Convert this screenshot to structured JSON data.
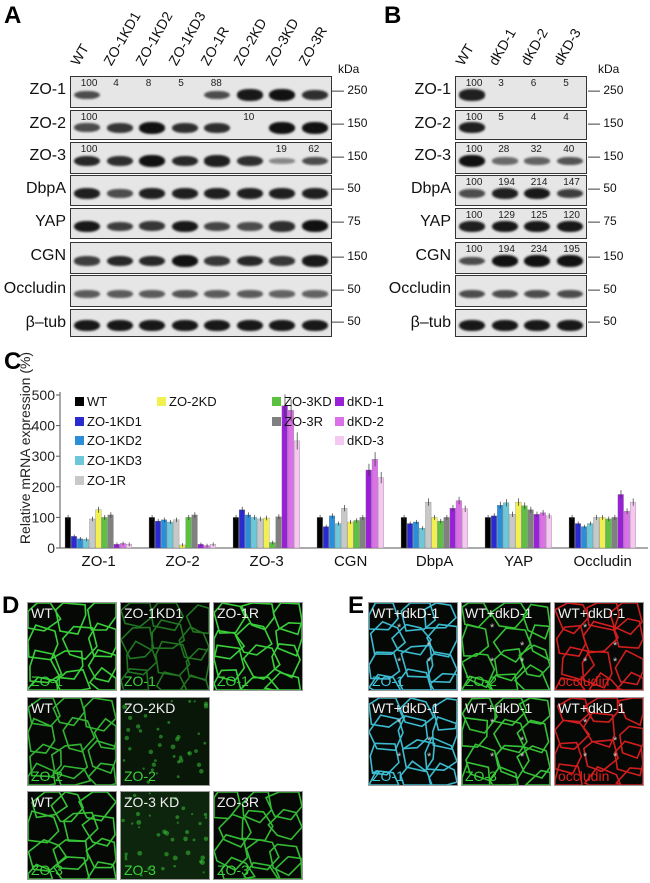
{
  "panelA": {
    "label": "A",
    "kda_label": "kDa",
    "lanes": [
      "WT",
      "ZO-1KD1",
      "ZO-1KD2",
      "ZO-1KD3",
      "ZO-1R",
      "ZO-2KD",
      "ZO-3KD",
      "ZO-3R"
    ],
    "rows": [
      {
        "name": "ZO-1",
        "kda": "250",
        "quant": [
          "100",
          "4",
          "8",
          "5",
          "88",
          "",
          "",
          ""
        ],
        "intensity": [
          0.6,
          0,
          0,
          0,
          0.6,
          0.95,
          1,
          0.8
        ]
      },
      {
        "name": "ZO-2",
        "kda": "150",
        "quant": [
          "100",
          "",
          "",
          "",
          "",
          "10",
          "",
          ""
        ],
        "intensity": [
          0.6,
          0.75,
          1,
          0.8,
          0.8,
          0,
          1,
          1
        ]
      },
      {
        "name": "ZO-3",
        "kda": "150",
        "quant": [
          "100",
          "",
          "",
          "",
          "",
          "",
          "19",
          "62"
        ],
        "intensity": [
          0.85,
          0.8,
          1,
          0.85,
          0.9,
          0.8,
          0.2,
          0.6
        ]
      },
      {
        "name": "DbpA",
        "kda": "50",
        "quant": [],
        "intensity": [
          0.9,
          0.6,
          0.9,
          0.9,
          0.9,
          0.9,
          0.9,
          0.9
        ]
      },
      {
        "name": "YAP",
        "kda": "75",
        "quant": [],
        "intensity": [
          0.95,
          0.7,
          0.75,
          0.95,
          0.65,
          0.6,
          0.8,
          1
        ]
      },
      {
        "name": "CGN",
        "kda": "150",
        "quant": [],
        "intensity": [
          0.7,
          0.85,
          0.85,
          1,
          0.75,
          0.85,
          0.75,
          0.95
        ]
      },
      {
        "name": "Occludin",
        "kda": "50",
        "quant": [],
        "intensity": [
          0.5,
          0.5,
          0.5,
          0.55,
          0.5,
          0.5,
          0.45,
          0.45
        ]
      },
      {
        "name": "β–tub",
        "kda": "50",
        "quant": [],
        "intensity": [
          0.95,
          0.95,
          0.95,
          0.95,
          0.95,
          0.95,
          0.95,
          0.95
        ]
      }
    ]
  },
  "panelB": {
    "label": "B",
    "kda_label": "kDa",
    "lanes": [
      "WT",
      "dKD-1",
      "dKD-2",
      "dKD-3"
    ],
    "rows": [
      {
        "name": "ZO-1",
        "kda": "250",
        "quant": [
          "100",
          "3",
          "6",
          "5"
        ],
        "intensity": [
          0.9,
          0,
          0,
          0
        ]
      },
      {
        "name": "ZO-2",
        "kda": "150",
        "quant": [
          "100",
          "5",
          "4",
          "4"
        ],
        "intensity": [
          0.9,
          0,
          0,
          0
        ]
      },
      {
        "name": "ZO-3",
        "kda": "150",
        "quant": [
          "100",
          "28",
          "32",
          "40"
        ],
        "intensity": [
          1,
          0.4,
          0.45,
          0.55
        ]
      },
      {
        "name": "DbpA",
        "kda": "50",
        "quant": [
          "100",
          "194",
          "214",
          "147"
        ],
        "intensity": [
          0.6,
          0.9,
          0.95,
          0.7
        ]
      },
      {
        "name": "YAP",
        "kda": "75",
        "quant": [
          "100",
          "129",
          "125",
          "120"
        ],
        "intensity": [
          0.9,
          0.95,
          0.95,
          0.95
        ]
      },
      {
        "name": "CGN",
        "kda": "150",
        "quant": [
          "100",
          "194",
          "234",
          "195"
        ],
        "intensity": [
          0.6,
          1,
          1,
          1
        ]
      },
      {
        "name": "Occludin",
        "kda": "50",
        "quant": [],
        "intensity": [
          0.6,
          0.6,
          0.6,
          0.6
        ]
      },
      {
        "name": "β–tub",
        "kda": "50",
        "quant": [],
        "intensity": [
          0.95,
          0.95,
          0.95,
          0.95
        ]
      }
    ]
  },
  "panelC": {
    "label": "C"
  },
  "chart_data": {
    "type": "bar",
    "ylabel": "Relative mRNA expression (%)",
    "ylim": [
      0,
      500
    ],
    "yticks": [
      "0",
      "100",
      "200",
      "300",
      "400",
      "500"
    ],
    "categories": [
      "ZO-1",
      "ZO-2",
      "ZO-3",
      "CGN",
      "DbpA",
      "YAP",
      "Occludin"
    ],
    "legend_placement": "top",
    "series": [
      {
        "name": "WT",
        "color": "#000000",
        "values": [
          100,
          100,
          100,
          100,
          100,
          100,
          100
        ]
      },
      {
        "name": "ZO-1KD1",
        "color": "#2a2ad0",
        "values": [
          38,
          88,
          125,
          70,
          80,
          105,
          80
        ]
      },
      {
        "name": "ZO-1KD2",
        "color": "#2a8fd8",
        "values": [
          30,
          92,
          108,
          105,
          85,
          140,
          70
        ]
      },
      {
        "name": "ZO-1KD3",
        "color": "#6cc8d8",
        "values": [
          28,
          85,
          100,
          80,
          65,
          148,
          80
        ]
      },
      {
        "name": "ZO-1R",
        "color": "#c8c8c8",
        "values": [
          95,
          92,
          95,
          130,
          150,
          110,
          100
        ]
      },
      {
        "name": "ZO-2KD",
        "color": "#f0f050",
        "values": [
          125,
          10,
          98,
          85,
          100,
          150,
          100
        ]
      },
      {
        "name": "ZO-3KD",
        "color": "#5cc040",
        "values": [
          100,
          100,
          18,
          90,
          88,
          138,
          95
        ]
      },
      {
        "name": "ZO-3R",
        "color": "#808080",
        "values": [
          108,
          108,
          102,
          100,
          100,
          125,
          100
        ]
      },
      {
        "name": "dKD-1",
        "color": "#9a20d8",
        "values": [
          12,
          12,
          465,
          255,
          130,
          110,
          175
        ]
      },
      {
        "name": "dKD-2",
        "color": "#dc70e8",
        "values": [
          15,
          8,
          450,
          290,
          155,
          115,
          120
        ]
      },
      {
        "name": "dKD-3",
        "color": "#f4c8f0",
        "values": [
          12,
          12,
          350,
          230,
          128,
          105,
          150
        ]
      }
    ]
  },
  "panelD": {
    "label": "D",
    "images": [
      [
        {
          "top": "WT",
          "bottom": "ZO-1",
          "density": 1
        },
        {
          "top": "ZO-1KD1",
          "bottom": "ZO-1",
          "density": 0.35
        },
        {
          "top": "ZO-1R",
          "bottom": "ZO-1",
          "density": 1
        }
      ],
      [
        {
          "top": "WT",
          "bottom": "ZO-2",
          "density": 0.8
        },
        {
          "top": "ZO-2KD",
          "bottom": "ZO-2",
          "density": 0
        }
      ],
      [
        {
          "top": "WT",
          "bottom": "ZO-3",
          "density": 0.9
        },
        {
          "top": "ZO-3 KD",
          "bottom": "ZO-3",
          "density": 0.1
        },
        {
          "top": "ZO-3R",
          "bottom": "ZO-3",
          "density": 0.85
        }
      ]
    ],
    "color": "#3ad03a"
  },
  "panelE": {
    "label": "E",
    "images": [
      [
        {
          "top": "WT+dkD-1",
          "bottom": "ZO-1",
          "color": "#40c8e0"
        },
        {
          "top": "WT+dkD-1",
          "bottom": "ZO-2",
          "color": "#3ad03a"
        },
        {
          "top": "WT+dkD-1",
          "bottom": "occludin",
          "color": "#e02020"
        }
      ],
      [
        {
          "top": "WT+dkD-1",
          "bottom": "ZO-1",
          "color": "#40c8e0"
        },
        {
          "top": "WT+dkD-1",
          "bottom": "ZO-3",
          "color": "#3ad03a"
        },
        {
          "top": "WT+dkD-1",
          "bottom": "occludin",
          "color": "#e02020"
        }
      ]
    ]
  }
}
